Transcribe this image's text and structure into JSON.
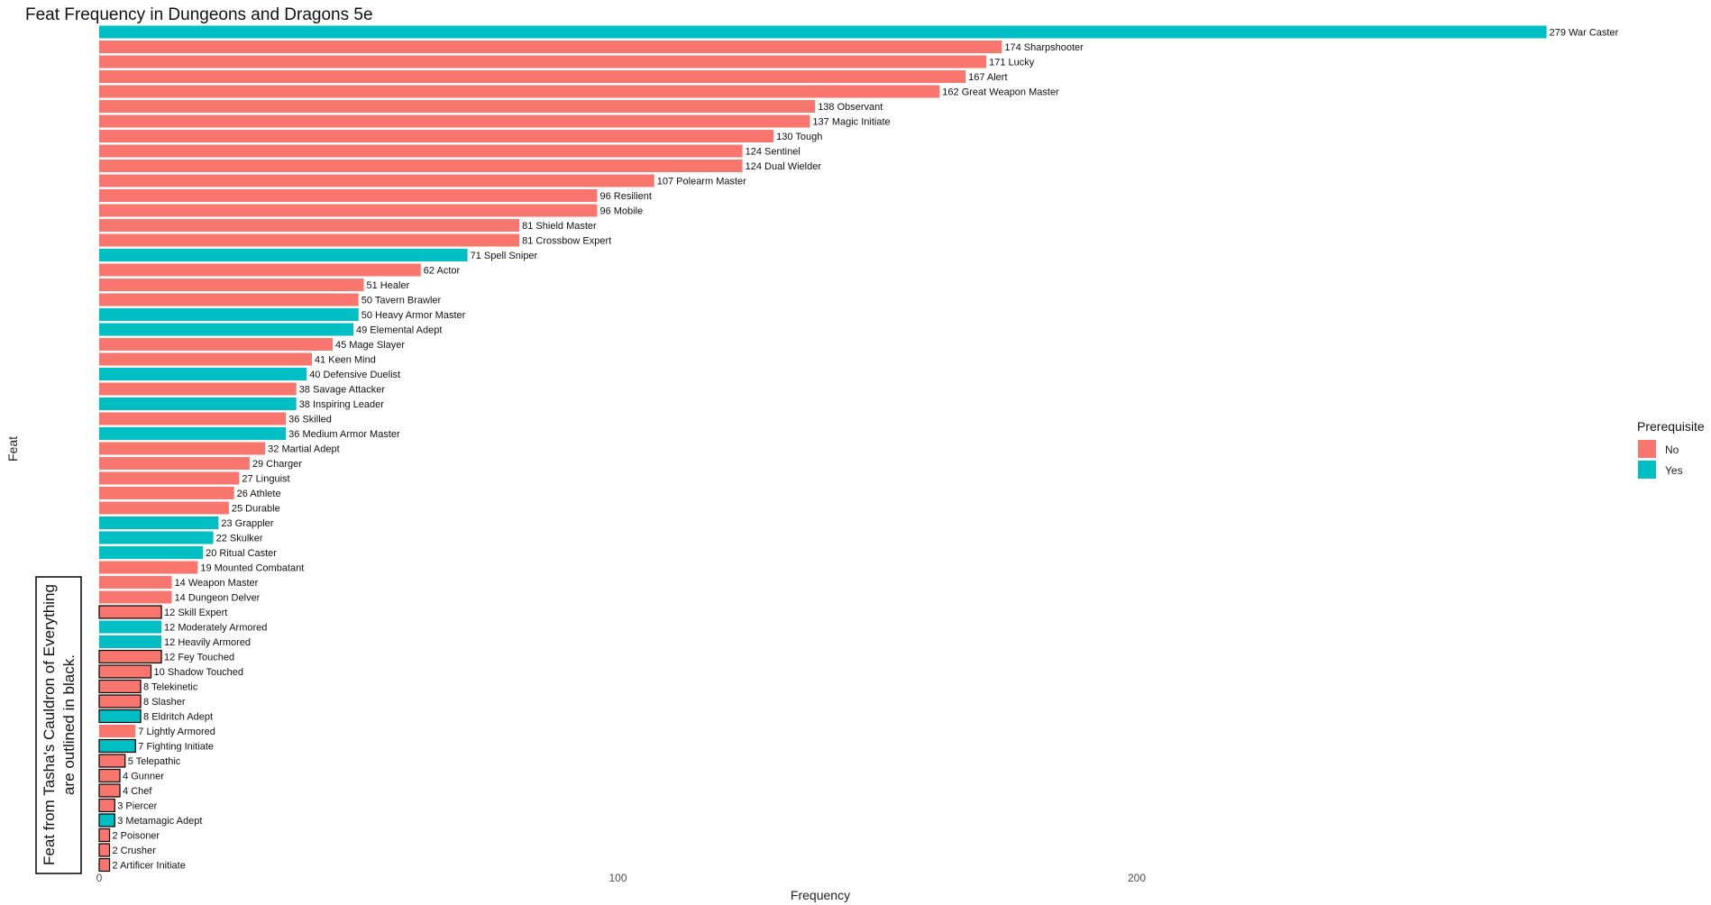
{
  "chart_data": {
    "type": "bar",
    "orientation": "horizontal",
    "title": "Feat Frequency in Dungeons and Dragons 5e",
    "xlabel": "Frequency",
    "ylabel": "Feat",
    "xlim": [
      0,
      300
    ],
    "xticks": [
      0,
      100,
      200
    ],
    "grid": false,
    "legend": {
      "title": "Prerequisite",
      "position": "right",
      "items": [
        {
          "label": "No",
          "color": "#F8766D"
        },
        {
          "label": "Yes",
          "color": "#00BFC4"
        }
      ]
    },
    "annotation": {
      "line1": "Feat from Tasha's Cauldron of Everything",
      "line2": "are outlined in black."
    },
    "bars": [
      {
        "feat": "War Caster",
        "value": 279,
        "prerequisite": "Yes",
        "tasha": false
      },
      {
        "feat": "Sharpshooter",
        "value": 174,
        "prerequisite": "No",
        "tasha": false
      },
      {
        "feat": "Lucky",
        "value": 171,
        "prerequisite": "No",
        "tasha": false
      },
      {
        "feat": "Alert",
        "value": 167,
        "prerequisite": "No",
        "tasha": false
      },
      {
        "feat": "Great Weapon Master",
        "value": 162,
        "prerequisite": "No",
        "tasha": false
      },
      {
        "feat": "Observant",
        "value": 138,
        "prerequisite": "No",
        "tasha": false
      },
      {
        "feat": "Magic Initiate",
        "value": 137,
        "prerequisite": "No",
        "tasha": false
      },
      {
        "feat": "Tough",
        "value": 130,
        "prerequisite": "No",
        "tasha": false
      },
      {
        "feat": "Sentinel",
        "value": 124,
        "prerequisite": "No",
        "tasha": false
      },
      {
        "feat": "Dual Wielder",
        "value": 124,
        "prerequisite": "No",
        "tasha": false
      },
      {
        "feat": "Polearm Master",
        "value": 107,
        "prerequisite": "No",
        "tasha": false
      },
      {
        "feat": "Resilient",
        "value": 96,
        "prerequisite": "No",
        "tasha": false
      },
      {
        "feat": "Mobile",
        "value": 96,
        "prerequisite": "No",
        "tasha": false
      },
      {
        "feat": "Shield Master",
        "value": 81,
        "prerequisite": "No",
        "tasha": false
      },
      {
        "feat": "Crossbow Expert",
        "value": 81,
        "prerequisite": "No",
        "tasha": false
      },
      {
        "feat": "Spell Sniper",
        "value": 71,
        "prerequisite": "Yes",
        "tasha": false
      },
      {
        "feat": "Actor",
        "value": 62,
        "prerequisite": "No",
        "tasha": false
      },
      {
        "feat": "Healer",
        "value": 51,
        "prerequisite": "No",
        "tasha": false
      },
      {
        "feat": "Tavern Brawler",
        "value": 50,
        "prerequisite": "No",
        "tasha": false
      },
      {
        "feat": "Heavy Armor Master",
        "value": 50,
        "prerequisite": "Yes",
        "tasha": false
      },
      {
        "feat": "Elemental Adept",
        "value": 49,
        "prerequisite": "Yes",
        "tasha": false
      },
      {
        "feat": "Mage Slayer",
        "value": 45,
        "prerequisite": "No",
        "tasha": false
      },
      {
        "feat": "Keen Mind",
        "value": 41,
        "prerequisite": "No",
        "tasha": false
      },
      {
        "feat": "Defensive Duelist",
        "value": 40,
        "prerequisite": "Yes",
        "tasha": false
      },
      {
        "feat": "Savage Attacker",
        "value": 38,
        "prerequisite": "No",
        "tasha": false
      },
      {
        "feat": "Inspiring Leader",
        "value": 38,
        "prerequisite": "Yes",
        "tasha": false
      },
      {
        "feat": "Skilled",
        "value": 36,
        "prerequisite": "No",
        "tasha": false
      },
      {
        "feat": "Medium Armor Master",
        "value": 36,
        "prerequisite": "Yes",
        "tasha": false
      },
      {
        "feat": "Martial Adept",
        "value": 32,
        "prerequisite": "No",
        "tasha": false
      },
      {
        "feat": "Charger",
        "value": 29,
        "prerequisite": "No",
        "tasha": false
      },
      {
        "feat": "Linguist",
        "value": 27,
        "prerequisite": "No",
        "tasha": false
      },
      {
        "feat": "Athlete",
        "value": 26,
        "prerequisite": "No",
        "tasha": false
      },
      {
        "feat": "Durable",
        "value": 25,
        "prerequisite": "No",
        "tasha": false
      },
      {
        "feat": "Grappler",
        "value": 23,
        "prerequisite": "Yes",
        "tasha": false
      },
      {
        "feat": "Skulker",
        "value": 22,
        "prerequisite": "Yes",
        "tasha": false
      },
      {
        "feat": "Ritual Caster",
        "value": 20,
        "prerequisite": "Yes",
        "tasha": false
      },
      {
        "feat": "Mounted Combatant",
        "value": 19,
        "prerequisite": "No",
        "tasha": false
      },
      {
        "feat": "Weapon Master",
        "value": 14,
        "prerequisite": "No",
        "tasha": false
      },
      {
        "feat": "Dungeon Delver",
        "value": 14,
        "prerequisite": "No",
        "tasha": false
      },
      {
        "feat": "Skill Expert",
        "value": 12,
        "prerequisite": "No",
        "tasha": true
      },
      {
        "feat": "Moderately Armored",
        "value": 12,
        "prerequisite": "Yes",
        "tasha": false
      },
      {
        "feat": "Heavily Armored",
        "value": 12,
        "prerequisite": "Yes",
        "tasha": false
      },
      {
        "feat": "Fey Touched",
        "value": 12,
        "prerequisite": "No",
        "tasha": true
      },
      {
        "feat": "Shadow Touched",
        "value": 10,
        "prerequisite": "No",
        "tasha": true
      },
      {
        "feat": "Telekinetic",
        "value": 8,
        "prerequisite": "No",
        "tasha": true
      },
      {
        "feat": "Slasher",
        "value": 8,
        "prerequisite": "No",
        "tasha": true
      },
      {
        "feat": "Eldritch Adept",
        "value": 8,
        "prerequisite": "Yes",
        "tasha": true
      },
      {
        "feat": "Lightly Armored",
        "value": 7,
        "prerequisite": "No",
        "tasha": false
      },
      {
        "feat": "Fighting Initiate",
        "value": 7,
        "prerequisite": "Yes",
        "tasha": true
      },
      {
        "feat": "Telepathic",
        "value": 5,
        "prerequisite": "No",
        "tasha": true
      },
      {
        "feat": "Gunner",
        "value": 4,
        "prerequisite": "No",
        "tasha": true
      },
      {
        "feat": "Chef",
        "value": 4,
        "prerequisite": "No",
        "tasha": true
      },
      {
        "feat": "Piercer",
        "value": 3,
        "prerequisite": "No",
        "tasha": true
      },
      {
        "feat": "Metamagic Adept",
        "value": 3,
        "prerequisite": "Yes",
        "tasha": true
      },
      {
        "feat": "Poisoner",
        "value": 2,
        "prerequisite": "No",
        "tasha": true
      },
      {
        "feat": "Crusher",
        "value": 2,
        "prerequisite": "No",
        "tasha": true
      },
      {
        "feat": "Artificer Initiate",
        "value": 2,
        "prerequisite": "No",
        "tasha": true
      }
    ]
  }
}
